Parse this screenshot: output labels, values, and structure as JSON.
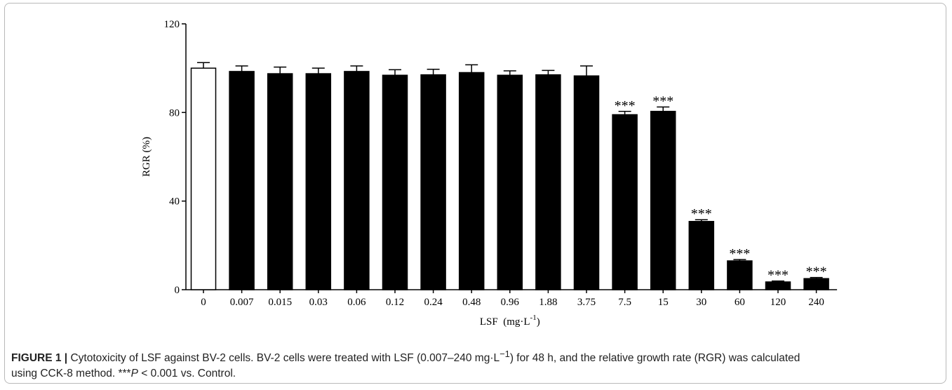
{
  "chart_data": {
    "type": "bar",
    "categories": [
      "0",
      "0.007",
      "0.015",
      "0.03",
      "0.06",
      "0.12",
      "0.24",
      "0.48",
      "0.96",
      "1.88",
      "3.75",
      "7.5",
      "15",
      "30",
      "60",
      "120",
      "240"
    ],
    "values": [
      100,
      98.5,
      97.5,
      97.5,
      98.5,
      96.8,
      97.0,
      98.0,
      96.8,
      97.0,
      96.5,
      79.0,
      80.5,
      30.8,
      13.0,
      3.5,
      5.0
    ],
    "errors": [
      2.5,
      2.5,
      3.0,
      2.5,
      2.5,
      2.5,
      2.5,
      3.5,
      2.0,
      2.0,
      4.5,
      1.5,
      2.0,
      0.8,
      0.6,
      0.4,
      0.5
    ],
    "significance": [
      "",
      "",
      "",
      "",
      "",
      "",
      "",
      "",
      "",
      "",
      "",
      "***",
      "***",
      "***",
      "***",
      "***",
      "***"
    ],
    "bar_fill": [
      "white",
      "black",
      "black",
      "black",
      "black",
      "black",
      "black",
      "black",
      "black",
      "black",
      "black",
      "black",
      "black",
      "black",
      "black",
      "black",
      "black"
    ],
    "yticks": [
      0,
      40,
      80,
      120
    ],
    "ylim": [
      0,
      120
    ],
    "ylabel": "RGR (%)",
    "xlabel_main": "LSF  (mg·L",
    "xlabel_sup": "-1",
    "xlabel_tail": ")",
    "grid": false,
    "colors": {
      "bar": "#000000",
      "control": "#ffffff",
      "axis": "#000000"
    }
  },
  "caption": {
    "label": "FIGURE 1 |",
    "line1": " Cytotoxicity of LSF against BV-2 cells. BV-2 cells were treated with LSF (0.007–240 mg·L",
    "sup1": "−1",
    "line1b": ") for 48 h, and the relative growth rate (RGR) was calculated",
    "line2a": "using CCK-8 method. ***",
    "italicP": "P",
    "line2b": " < 0.001 vs. Control."
  }
}
